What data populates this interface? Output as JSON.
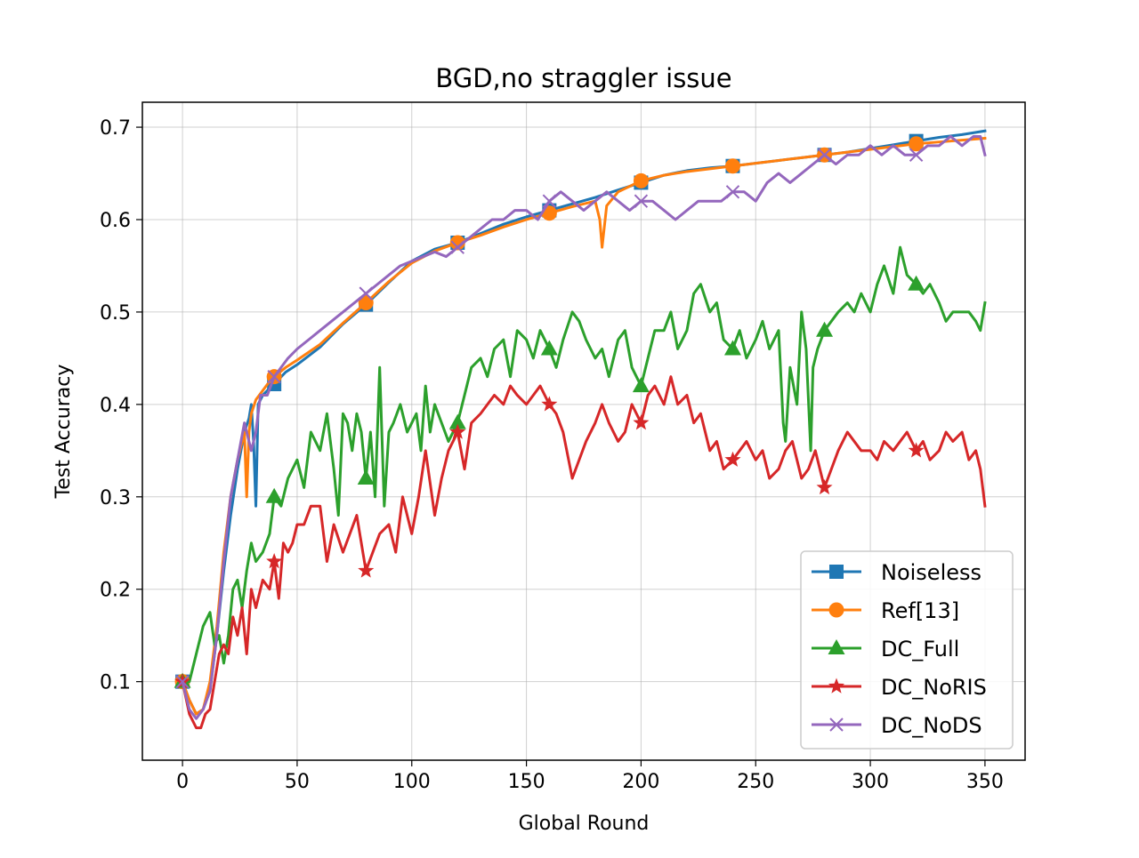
{
  "chart_data": {
    "type": "line",
    "title": "BGD,no straggler issue",
    "xlabel": "Global Round",
    "ylabel": "Test Accuracy",
    "xlim": [
      -17.5,
      367.5
    ],
    "ylim": [
      0.015,
      0.727
    ],
    "xticks": [
      0,
      50,
      100,
      150,
      200,
      250,
      300,
      350
    ],
    "yticks": [
      0.1,
      0.2,
      0.3,
      0.4,
      0.5,
      0.6,
      0.7
    ],
    "xtick_labels": [
      "0",
      "50",
      "100",
      "150",
      "200",
      "250",
      "300",
      "350"
    ],
    "ytick_labels": [
      "0.1",
      "0.2",
      "0.3",
      "0.4",
      "0.5",
      "0.6",
      "0.7"
    ],
    "grid": true,
    "legend_position": "lower-right",
    "series": [
      {
        "name": "Noiseless",
        "color": "#1f77b4",
        "marker": "square",
        "marker_x": [
          0,
          40,
          80,
          120,
          160,
          200,
          240,
          280,
          320
        ],
        "x": [
          0,
          3,
          6,
          9,
          12,
          15,
          18,
          21,
          24,
          27,
          29,
          30,
          31,
          32,
          33,
          35,
          37,
          40,
          45,
          50,
          60,
          70,
          80,
          90,
          100,
          110,
          120,
          130,
          140,
          150,
          160,
          170,
          180,
          190,
          200,
          210,
          220,
          230,
          240,
          250,
          260,
          270,
          280,
          290,
          300,
          310,
          320,
          330,
          340,
          350
        ],
        "y": [
          0.1,
          0.08,
          0.065,
          0.07,
          0.09,
          0.15,
          0.22,
          0.28,
          0.33,
          0.37,
          0.385,
          0.4,
          0.36,
          0.29,
          0.4,
          0.41,
          0.415,
          0.422,
          0.435,
          0.443,
          0.462,
          0.487,
          0.508,
          0.532,
          0.555,
          0.568,
          0.575,
          0.585,
          0.595,
          0.603,
          0.61,
          0.617,
          0.624,
          0.632,
          0.64,
          0.648,
          0.653,
          0.656,
          0.658,
          0.661,
          0.664,
          0.667,
          0.67,
          0.673,
          0.677,
          0.681,
          0.685,
          0.689,
          0.692,
          0.696
        ]
      },
      {
        "name": "Ref[13]",
        "color": "#ff7f0e",
        "marker": "circle",
        "marker_x": [
          0,
          40,
          80,
          120,
          160,
          200,
          240,
          280,
          320
        ],
        "x": [
          0,
          3,
          6,
          9,
          12,
          15,
          18,
          21,
          24,
          27,
          28,
          29,
          30,
          32,
          35,
          38,
          40,
          45,
          50,
          60,
          70,
          80,
          90,
          100,
          110,
          120,
          130,
          140,
          150,
          160,
          170,
          180,
          182,
          183,
          185,
          190,
          200,
          210,
          220,
          230,
          240,
          250,
          260,
          270,
          280,
          290,
          300,
          310,
          320,
          330,
          340,
          350
        ],
        "y": [
          0.1,
          0.08,
          0.065,
          0.07,
          0.1,
          0.16,
          0.24,
          0.3,
          0.34,
          0.37,
          0.3,
          0.37,
          0.39,
          0.405,
          0.415,
          0.425,
          0.43,
          0.44,
          0.448,
          0.465,
          0.488,
          0.51,
          0.533,
          0.553,
          0.566,
          0.575,
          0.583,
          0.592,
          0.6,
          0.607,
          0.614,
          0.62,
          0.6,
          0.57,
          0.615,
          0.63,
          0.642,
          0.648,
          0.652,
          0.655,
          0.658,
          0.661,
          0.664,
          0.667,
          0.67,
          0.673,
          0.676,
          0.679,
          0.682,
          0.684,
          0.686,
          0.688
        ]
      },
      {
        "name": "DC_Full",
        "color": "#2ca02c",
        "marker": "triangle",
        "marker_x": [
          0,
          40,
          80,
          120,
          160,
          200,
          240,
          280,
          320
        ],
        "x": [
          0,
          3,
          6,
          9,
          12,
          14,
          16,
          18,
          20,
          22,
          24,
          26,
          28,
          30,
          32,
          35,
          38,
          40,
          43,
          46,
          50,
          53,
          56,
          60,
          63,
          66,
          68,
          70,
          72,
          74,
          76,
          78,
          80,
          82,
          84,
          86,
          88,
          90,
          92,
          95,
          98,
          100,
          102,
          104,
          106,
          108,
          110,
          113,
          116,
          120,
          123,
          126,
          130,
          133,
          136,
          140,
          143,
          146,
          150,
          153,
          156,
          160,
          163,
          166,
          170,
          173,
          176,
          180,
          183,
          186,
          190,
          193,
          196,
          200,
          203,
          206,
          210,
          213,
          216,
          220,
          223,
          226,
          230,
          233,
          236,
          240,
          243,
          246,
          250,
          253,
          256,
          260,
          262,
          263,
          265,
          268,
          270,
          272,
          274,
          275,
          277,
          280,
          283,
          286,
          290,
          293,
          296,
          300,
          303,
          306,
          310,
          313,
          316,
          320,
          323,
          326,
          330,
          333,
          336,
          340,
          343,
          346,
          348,
          350
        ],
        "y": [
          0.1,
          0.1,
          0.13,
          0.16,
          0.175,
          0.14,
          0.15,
          0.12,
          0.15,
          0.2,
          0.21,
          0.18,
          0.22,
          0.25,
          0.23,
          0.24,
          0.26,
          0.3,
          0.29,
          0.32,
          0.34,
          0.31,
          0.37,
          0.35,
          0.39,
          0.33,
          0.28,
          0.39,
          0.38,
          0.35,
          0.39,
          0.37,
          0.32,
          0.37,
          0.3,
          0.44,
          0.29,
          0.37,
          0.38,
          0.4,
          0.37,
          0.38,
          0.39,
          0.35,
          0.42,
          0.37,
          0.4,
          0.38,
          0.36,
          0.38,
          0.41,
          0.44,
          0.45,
          0.43,
          0.46,
          0.47,
          0.43,
          0.48,
          0.47,
          0.45,
          0.48,
          0.46,
          0.44,
          0.47,
          0.5,
          0.49,
          0.47,
          0.45,
          0.46,
          0.43,
          0.47,
          0.48,
          0.44,
          0.42,
          0.45,
          0.48,
          0.48,
          0.5,
          0.46,
          0.48,
          0.52,
          0.53,
          0.5,
          0.51,
          0.47,
          0.46,
          0.48,
          0.45,
          0.47,
          0.49,
          0.46,
          0.48,
          0.38,
          0.36,
          0.44,
          0.4,
          0.5,
          0.46,
          0.35,
          0.44,
          0.46,
          0.48,
          0.49,
          0.5,
          0.51,
          0.5,
          0.52,
          0.5,
          0.53,
          0.55,
          0.52,
          0.57,
          0.54,
          0.53,
          0.52,
          0.53,
          0.51,
          0.49,
          0.5,
          0.5,
          0.5,
          0.49,
          0.48,
          0.51
        ]
      },
      {
        "name": "DC_NoRIS",
        "color": "#d62728",
        "marker": "star",
        "marker_x": [
          0,
          40,
          80,
          120,
          160,
          200,
          240,
          280,
          320
        ],
        "x": [
          0,
          3,
          6,
          8,
          10,
          12,
          14,
          16,
          18,
          20,
          22,
          24,
          26,
          28,
          30,
          32,
          35,
          38,
          40,
          42,
          44,
          46,
          48,
          50,
          53,
          56,
          60,
          63,
          66,
          70,
          73,
          76,
          80,
          83,
          86,
          90,
          93,
          96,
          100,
          103,
          106,
          110,
          113,
          116,
          120,
          123,
          126,
          130,
          133,
          136,
          140,
          143,
          146,
          150,
          153,
          156,
          160,
          163,
          166,
          170,
          173,
          176,
          180,
          183,
          186,
          190,
          193,
          196,
          200,
          203,
          206,
          210,
          213,
          216,
          220,
          223,
          226,
          230,
          233,
          236,
          240,
          243,
          246,
          250,
          253,
          256,
          260,
          263,
          266,
          270,
          273,
          276,
          280,
          283,
          286,
          290,
          293,
          296,
          300,
          303,
          306,
          310,
          313,
          316,
          320,
          323,
          326,
          330,
          333,
          336,
          340,
          343,
          346,
          348,
          350
        ],
        "y": [
          0.1,
          0.065,
          0.05,
          0.05,
          0.065,
          0.07,
          0.1,
          0.13,
          0.14,
          0.13,
          0.17,
          0.15,
          0.18,
          0.13,
          0.2,
          0.18,
          0.21,
          0.2,
          0.23,
          0.19,
          0.25,
          0.24,
          0.25,
          0.27,
          0.27,
          0.29,
          0.29,
          0.23,
          0.27,
          0.24,
          0.26,
          0.28,
          0.22,
          0.24,
          0.26,
          0.27,
          0.24,
          0.3,
          0.26,
          0.3,
          0.35,
          0.28,
          0.32,
          0.35,
          0.37,
          0.33,
          0.38,
          0.39,
          0.4,
          0.41,
          0.4,
          0.42,
          0.41,
          0.4,
          0.41,
          0.42,
          0.4,
          0.39,
          0.37,
          0.32,
          0.34,
          0.36,
          0.38,
          0.4,
          0.38,
          0.36,
          0.37,
          0.4,
          0.38,
          0.41,
          0.42,
          0.4,
          0.43,
          0.4,
          0.41,
          0.38,
          0.39,
          0.35,
          0.36,
          0.33,
          0.34,
          0.35,
          0.36,
          0.34,
          0.35,
          0.32,
          0.33,
          0.35,
          0.36,
          0.32,
          0.33,
          0.35,
          0.31,
          0.33,
          0.35,
          0.37,
          0.36,
          0.35,
          0.35,
          0.34,
          0.36,
          0.35,
          0.36,
          0.37,
          0.35,
          0.36,
          0.34,
          0.35,
          0.37,
          0.36,
          0.37,
          0.34,
          0.35,
          0.33,
          0.29
        ]
      },
      {
        "name": "DC_NoDS",
        "color": "#9467bd",
        "marker": "x",
        "marker_x": [
          0,
          40,
          80,
          120,
          160,
          200,
          240,
          280,
          320
        ],
        "x": [
          0,
          3,
          6,
          9,
          12,
          15,
          18,
          21,
          24,
          27,
          30,
          32,
          34,
          37,
          40,
          43,
          46,
          50,
          55,
          60,
          65,
          70,
          75,
          80,
          85,
          90,
          95,
          100,
          105,
          110,
          115,
          120,
          125,
          130,
          135,
          140,
          145,
          150,
          155,
          160,
          165,
          170,
          175,
          180,
          185,
          190,
          195,
          200,
          205,
          210,
          215,
          220,
          225,
          230,
          235,
          240,
          245,
          250,
          255,
          260,
          265,
          270,
          275,
          280,
          285,
          290,
          295,
          300,
          305,
          310,
          315,
          320,
          325,
          330,
          335,
          340,
          345,
          348,
          350
        ],
        "y": [
          0.1,
          0.07,
          0.06,
          0.07,
          0.09,
          0.15,
          0.23,
          0.3,
          0.34,
          0.38,
          0.35,
          0.37,
          0.41,
          0.41,
          0.43,
          0.44,
          0.45,
          0.46,
          0.47,
          0.48,
          0.49,
          0.5,
          0.51,
          0.52,
          0.53,
          0.54,
          0.55,
          0.555,
          0.56,
          0.565,
          0.56,
          0.57,
          0.58,
          0.59,
          0.6,
          0.6,
          0.61,
          0.61,
          0.6,
          0.62,
          0.63,
          0.62,
          0.61,
          0.62,
          0.63,
          0.62,
          0.61,
          0.62,
          0.62,
          0.61,
          0.6,
          0.61,
          0.62,
          0.62,
          0.62,
          0.63,
          0.63,
          0.62,
          0.64,
          0.65,
          0.64,
          0.65,
          0.66,
          0.67,
          0.66,
          0.67,
          0.67,
          0.68,
          0.67,
          0.68,
          0.67,
          0.67,
          0.68,
          0.68,
          0.69,
          0.68,
          0.69,
          0.69,
          0.67
        ]
      }
    ]
  }
}
